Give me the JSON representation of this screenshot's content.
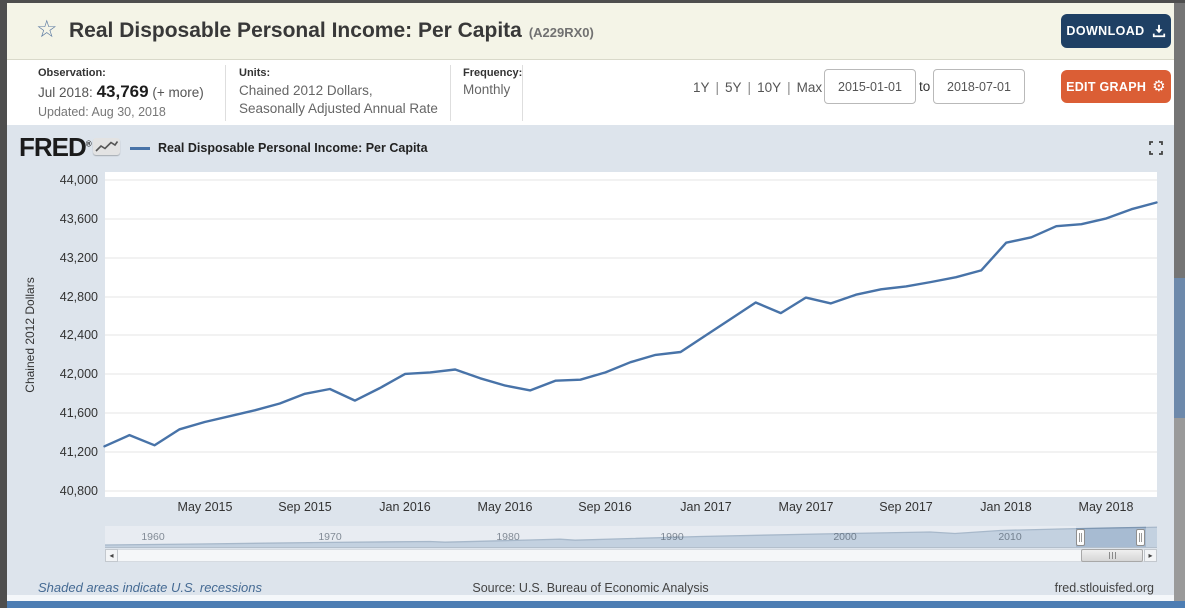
{
  "colors": {
    "line": "#4873a8",
    "header_bg": "#f4f4e7",
    "download_button_bg": "#1f4064",
    "edit_button_bg": "#db5e35",
    "panel_bg": "#dde4ec",
    "bottom_bar": "#4d7db3",
    "link": "#456a93"
  },
  "icons": {
    "star": "☆",
    "gear": "⚙",
    "scroll_left_arrow": "◂",
    "scroll_right_arrow": "▸"
  },
  "header": {
    "title": "Real Disposable Personal Income: Per Capita",
    "series_id": "(A229RX0)",
    "download_label": "DOWNLOAD"
  },
  "meta": {
    "observation_label": "Observation:",
    "observation_period": "Jul 2018:",
    "observation_value": "43,769",
    "observation_more": "(+ more)",
    "updated": "Updated: Aug 30, 2018",
    "units_label": "Units:",
    "units_line1": "Chained 2012 Dollars,",
    "units_line2": "Seasonally Adjusted Annual Rate",
    "frequency_label": "Frequency:",
    "frequency_value": "Monthly",
    "ranges": [
      "1Y",
      "5Y",
      "10Y",
      "Max"
    ],
    "range_separator": "|",
    "date_from": "2015-01-01",
    "to_label": "to",
    "date_to": "2018-07-01",
    "edit_graph_label": "EDIT GRAPH"
  },
  "graph_header": {
    "logo_text": "FRED",
    "logo_reg": "®",
    "legend_label": "Real Disposable Personal Income: Per Capita"
  },
  "chart_data": {
    "type": "line",
    "title": "Real Disposable Personal Income: Per Capita",
    "ylabel": "Chained 2012 Dollars",
    "ylim": [
      40800,
      44000
    ],
    "ytick_step": 400,
    "grid": true,
    "yticks": [
      "44,000",
      "43,600",
      "43,200",
      "42,800",
      "42,400",
      "42,000",
      "41,600",
      "41,200",
      "40,800"
    ],
    "xticks": [
      "May 2015",
      "Sep 2015",
      "Jan 2016",
      "May 2016",
      "Sep 2016",
      "Jan 2017",
      "May 2017",
      "Sep 2017",
      "Jan 2018",
      "May 2018"
    ],
    "series": [
      {
        "name": "Real Disposable Personal Income: Per Capita",
        "color": "#4873a8",
        "x": [
          "2015-01",
          "2015-02",
          "2015-03",
          "2015-04",
          "2015-05",
          "2015-06",
          "2015-07",
          "2015-08",
          "2015-09",
          "2015-10",
          "2015-11",
          "2015-12",
          "2016-01",
          "2016-02",
          "2016-03",
          "2016-04",
          "2016-05",
          "2016-06",
          "2016-07",
          "2016-08",
          "2016-09",
          "2016-10",
          "2016-11",
          "2016-12",
          "2017-01",
          "2017-02",
          "2017-03",
          "2017-04",
          "2017-05",
          "2017-06",
          "2017-07",
          "2017-08",
          "2017-09",
          "2017-10",
          "2017-11",
          "2017-12",
          "2018-01",
          "2018-02",
          "2018-03",
          "2018-04",
          "2018-05",
          "2018-06",
          "2018-07"
        ],
        "values": [
          41260,
          41375,
          41270,
          41435,
          41510,
          41570,
          41630,
          41700,
          41800,
          41850,
          41730,
          41860,
          42005,
          42020,
          42050,
          41960,
          41885,
          41835,
          41935,
          41945,
          42020,
          42125,
          42200,
          42230,
          42400,
          42570,
          42740,
          42630,
          42790,
          42730,
          42820,
          42875,
          42905,
          42950,
          43000,
          43070,
          43355,
          43410,
          43525,
          43545,
          43605,
          43700,
          43769
        ]
      }
    ],
    "minimap": {
      "year_labels": [
        "1960",
        "1970",
        "1980",
        "1990",
        "2000",
        "2010"
      ],
      "selection_start": "2015-01-01",
      "selection_end": "2018-07-01"
    }
  },
  "footer": {
    "recessions_note": "Shaded areas indicate U.S. recessions",
    "source": "Source: U.S. Bureau of Economic Analysis",
    "site": "fred.stlouisfed.org"
  }
}
